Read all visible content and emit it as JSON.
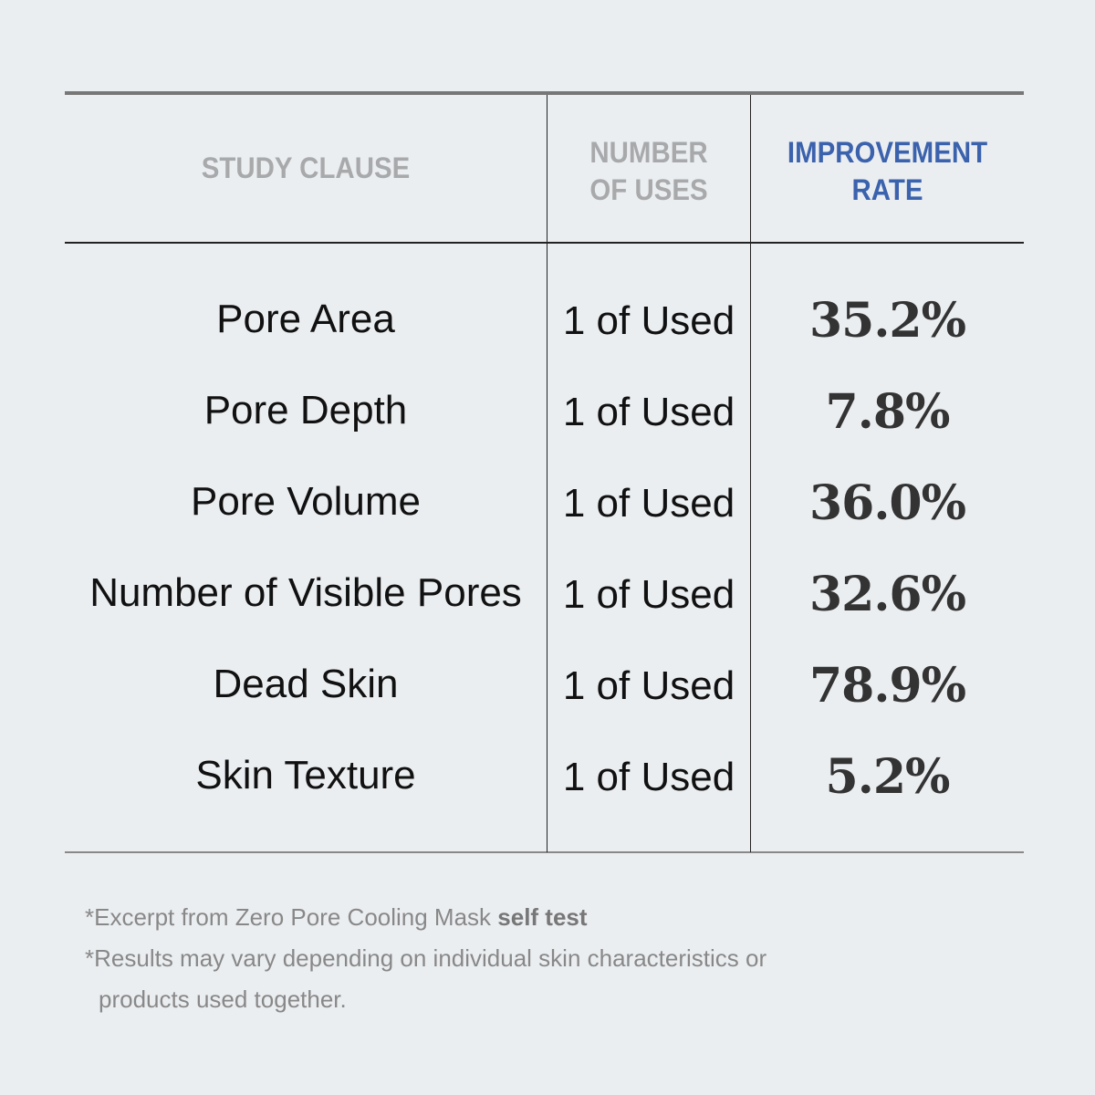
{
  "table": {
    "headers": {
      "clause": "STUDY CLAUSE",
      "uses_line1": "NUMBER",
      "uses_line2": "OF USES",
      "rate_line1": "IMPROVEMENT",
      "rate_line2": "RATE"
    },
    "header_colors": {
      "gray": "#a8a9ab",
      "accent": "#3b62ad"
    },
    "rows": [
      {
        "clause": "Pore Area",
        "uses": "1 of Used",
        "rate": "35.2%"
      },
      {
        "clause": "Pore Depth",
        "uses": "1 of Used",
        "rate": "7.8%"
      },
      {
        "clause": "Pore Volume",
        "uses": "1 of Used",
        "rate": "36.0%"
      },
      {
        "clause": "Number of Visible Pores",
        "uses": "1 of Used",
        "rate": "32.6%"
      },
      {
        "clause": "Dead Skin",
        "uses": "1 of Used",
        "rate": "78.9%"
      },
      {
        "clause": "Skin Texture",
        "uses": "1 of Used",
        "rate": "5.2%"
      }
    ]
  },
  "footnotes": {
    "line1_prefix": "*Excerpt from Zero Pore Cooling Mask ",
    "line1_bold": "self test",
    "line2": "*Results may vary depending on individual skin characteristics or",
    "line3": "products used together."
  }
}
